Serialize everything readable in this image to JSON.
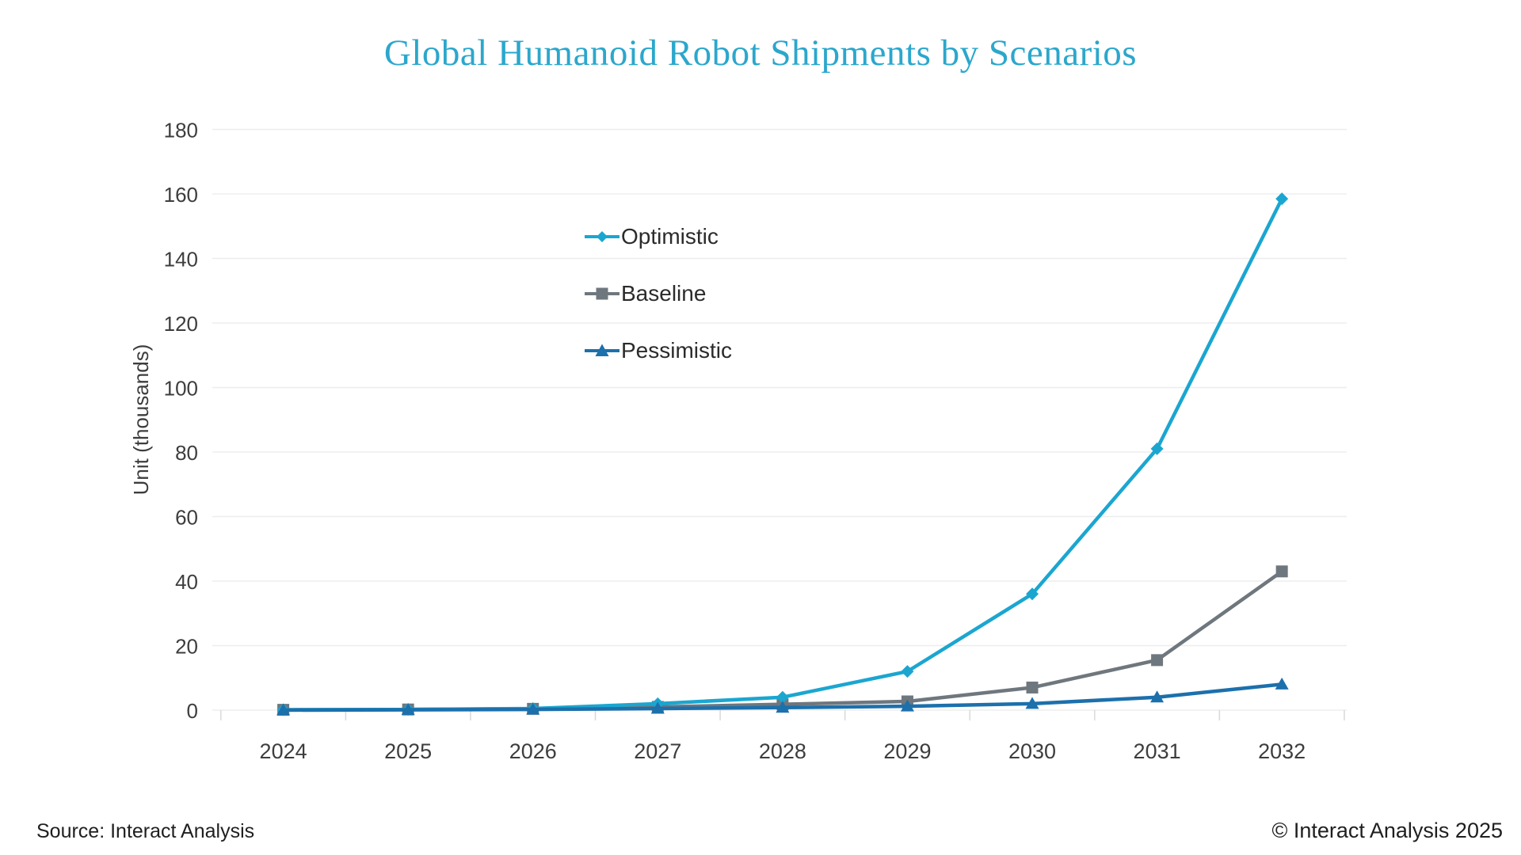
{
  "title": {
    "text": "Global Humanoid Robot Shipments by Scenarios",
    "color": "#2BA7CC"
  },
  "footer": {
    "source": "Source: Interact Analysis",
    "copyright": "© Interact Analysis 2025"
  },
  "colors": {
    "optimistic": "#1BA6D0",
    "baseline": "#6F777E",
    "pessimistic": "#1C70AC",
    "gridline": "#EDEDED",
    "axis_tick": "#D9D9D9",
    "axis_text": "#3d3d3d"
  },
  "chart_data": {
    "type": "line",
    "title": "Global Humanoid Robot Shipments by Scenarios",
    "xlabel": "",
    "ylabel": "Unit (thousands)",
    "categories": [
      "2024",
      "2025",
      "2026",
      "2027",
      "2028",
      "2029",
      "2030",
      "2031",
      "2032"
    ],
    "series": [
      {
        "name": "Optimistic",
        "marker": "diamond",
        "color": "#1BA6D0",
        "values": [
          0.1,
          0.2,
          0.5,
          2,
          4,
          12,
          36,
          81,
          158.5
        ]
      },
      {
        "name": "Baseline",
        "marker": "square",
        "color": "#6F777E",
        "values": [
          0.1,
          0.2,
          0.4,
          1,
          1.8,
          2.7,
          7,
          15.5,
          43
        ]
      },
      {
        "name": "Pessimistic",
        "marker": "triangle",
        "color": "#1C70AC",
        "values": [
          0,
          0.1,
          0.2,
          0.5,
          0.8,
          1.2,
          2,
          4,
          8
        ]
      }
    ],
    "ylim": [
      0,
      180
    ],
    "ytick_step": 20,
    "grid": "horizontal",
    "legend_position": "inside-upper-middle"
  }
}
